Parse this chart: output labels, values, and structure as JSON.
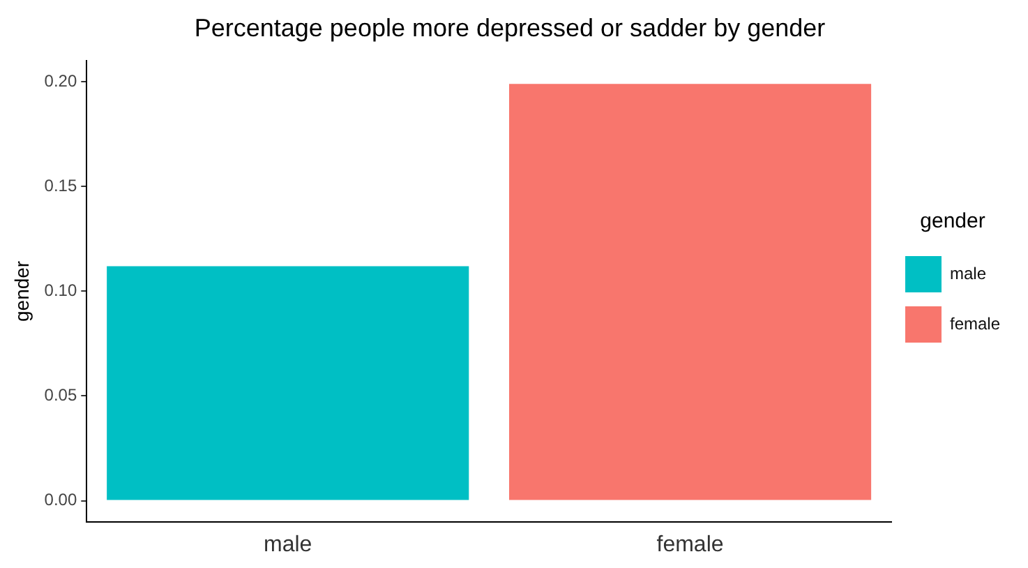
{
  "chart_data": {
    "type": "bar",
    "title": "Percentage people more depressed or sadder by gender",
    "ylabel": "gender",
    "legend_title": "gender",
    "categories": [
      "male",
      "female"
    ],
    "series": [
      {
        "name": "male",
        "color": "#00bfc4",
        "values": [
          0.112,
          null
        ]
      },
      {
        "name": "female",
        "color": "#f8766d",
        "values": [
          null,
          0.199
        ]
      }
    ],
    "ylim": [
      -0.01,
      0.21
    ],
    "yticks": [
      {
        "value": 0,
        "label": "0.00"
      },
      {
        "value": 0.05,
        "label": "0.05"
      },
      {
        "value": 0.1,
        "label": "0.10"
      },
      {
        "value": 0.15,
        "label": "0.15"
      },
      {
        "value": 0.2,
        "label": "0.20"
      }
    ],
    "grid": false,
    "legend": "right"
  }
}
